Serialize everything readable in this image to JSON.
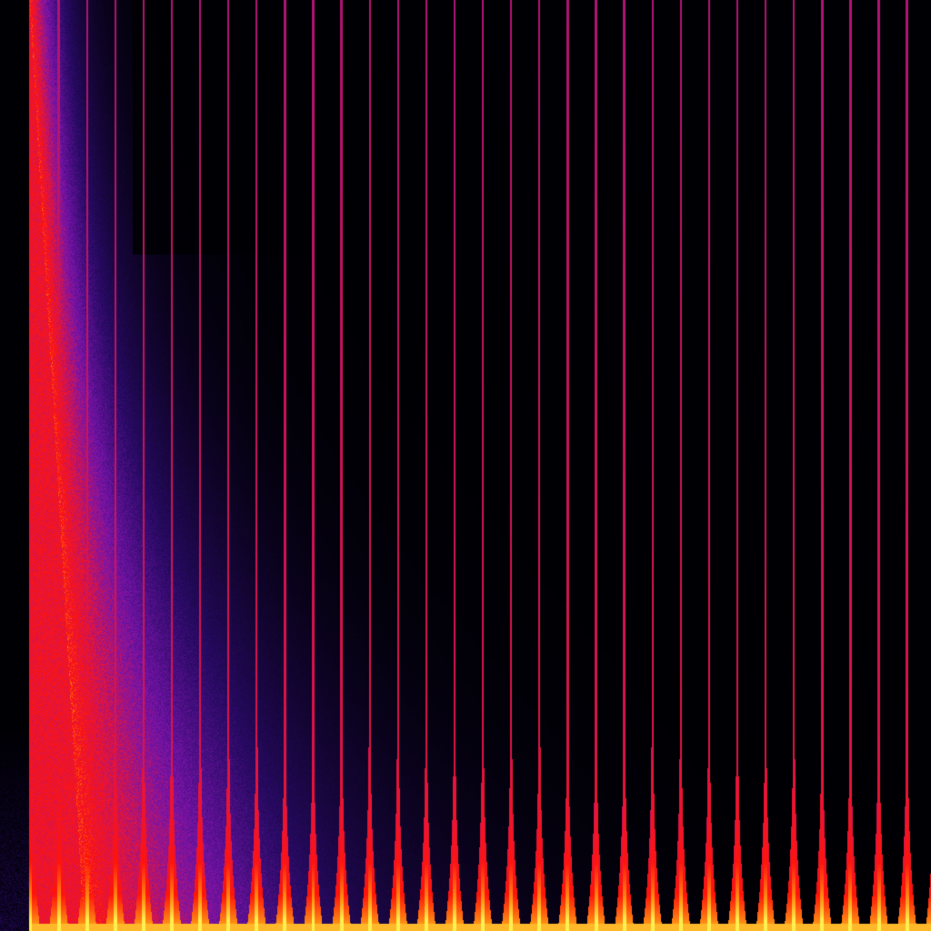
{
  "colors": {
    "background": "#000000",
    "low": "#1a0a5a",
    "mid": "#8a10b0",
    "high": "#ff1010",
    "peak": "#ffe020"
  }
}
